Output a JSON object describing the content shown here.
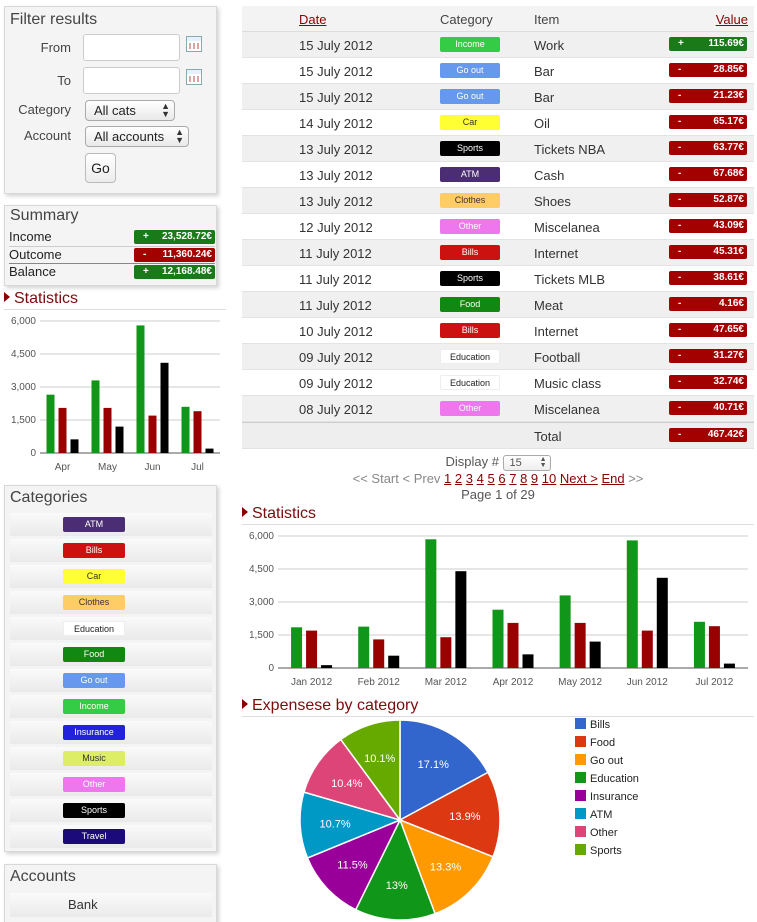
{
  "filter": {
    "title": "Filter results",
    "from_label": "From",
    "to_label": "To",
    "from_value": "",
    "to_value": "",
    "category_label": "Category",
    "category_value": "All cats",
    "account_label": "Account",
    "account_value": "All accounts",
    "go_label": "Go"
  },
  "summary": {
    "title": "Summary",
    "rows": [
      {
        "label": "Income",
        "sign": "+",
        "amount": "23,528.72€",
        "color": "#1a7a1a"
      },
      {
        "label": "Outcome",
        "sign": "-",
        "amount": "11,360.24€",
        "color": "#a30000"
      },
      {
        "label": "Balance",
        "sign": "+",
        "amount": "12,168.48€",
        "color": "#1a7a1a"
      }
    ]
  },
  "stats_left_title": "Statistics",
  "categories": {
    "title": "Categories",
    "items": [
      {
        "label": "ATM",
        "bg": "#4b2d73",
        "fg": "#ffffff"
      },
      {
        "label": "Bills",
        "bg": "#cc1111",
        "fg": "#ffffff"
      },
      {
        "label": "Car",
        "bg": "#ffff33",
        "fg": "#333333"
      },
      {
        "label": "Clothes",
        "bg": "#ffcc66",
        "fg": "#333333"
      },
      {
        "label": "Education",
        "bg": "#ffffff",
        "fg": "#222222"
      },
      {
        "label": "Food",
        "bg": "#118811",
        "fg": "#ffffff"
      },
      {
        "label": "Go out",
        "bg": "#6699ee",
        "fg": "#ffffff"
      },
      {
        "label": "Income",
        "bg": "#33cc44",
        "fg": "#ffffff"
      },
      {
        "label": "Insurance",
        "bg": "#2222dd",
        "fg": "#ffffff"
      },
      {
        "label": "Music",
        "bg": "#ddee66",
        "fg": "#333333"
      },
      {
        "label": "Other",
        "bg": "#ee77ee",
        "fg": "#ffffff"
      },
      {
        "label": "Sports",
        "bg": "#000000",
        "fg": "#ffffff"
      },
      {
        "label": "Travel",
        "bg": "#1a0a7a",
        "fg": "#ffffff"
      }
    ]
  },
  "accounts": {
    "title": "Accounts",
    "items": [
      "Bank"
    ]
  },
  "table": {
    "headers": {
      "date": "Date",
      "category": "Category",
      "item": "Item",
      "value": "Value"
    },
    "rows": [
      {
        "date": "15 July 2012",
        "category": "Income",
        "item": "Work",
        "sign": "+",
        "value": "115.69€"
      },
      {
        "date": "15 July 2012",
        "category": "Go out",
        "item": "Bar",
        "sign": "-",
        "value": "28.85€"
      },
      {
        "date": "15 July 2012",
        "category": "Go out",
        "item": "Bar",
        "sign": "-",
        "value": "21.23€"
      },
      {
        "date": "14 July 2012",
        "category": "Car",
        "item": "Oil",
        "sign": "-",
        "value": "65.17€"
      },
      {
        "date": "13 July 2012",
        "category": "Sports",
        "item": "Tickets NBA",
        "sign": "-",
        "value": "63.77€"
      },
      {
        "date": "13 July 2012",
        "category": "ATM",
        "item": "Cash",
        "sign": "-",
        "value": "67.68€"
      },
      {
        "date": "13 July 2012",
        "category": "Clothes",
        "item": "Shoes",
        "sign": "-",
        "value": "52.87€"
      },
      {
        "date": "12 July 2012",
        "category": "Other",
        "item": "Miscelanea",
        "sign": "-",
        "value": "43.09€"
      },
      {
        "date": "11 July 2012",
        "category": "Bills",
        "item": "Internet",
        "sign": "-",
        "value": "45.31€"
      },
      {
        "date": "11 July 2012",
        "category": "Sports",
        "item": "Tickets MLB",
        "sign": "-",
        "value": "38.61€"
      },
      {
        "date": "11 July 2012",
        "category": "Food",
        "item": "Meat",
        "sign": "-",
        "value": "4.16€"
      },
      {
        "date": "10 July 2012",
        "category": "Bills",
        "item": "Internet",
        "sign": "-",
        "value": "47.65€"
      },
      {
        "date": "09 July 2012",
        "category": "Education",
        "item": "Football",
        "sign": "-",
        "value": "31.27€"
      },
      {
        "date": "09 July 2012",
        "category": "Education",
        "item": "Music class",
        "sign": "-",
        "value": "32.74€"
      },
      {
        "date": "08 July 2012",
        "category": "Other",
        "item": "Miscelanea",
        "sign": "-",
        "value": "40.71€"
      }
    ],
    "total_label": "Total",
    "total_sign": "-",
    "total_value": "467.42€"
  },
  "pager": {
    "display_label": "Display #",
    "display_value": "15",
    "start": "<< Start",
    "prev": "< Prev",
    "pages": [
      "1",
      "2",
      "3",
      "4",
      "5",
      "6",
      "7",
      "8",
      "9",
      "10"
    ],
    "next": "Next >",
    "end": "End",
    "end_suffix": ">>",
    "page_info": "Page 1 of 29"
  },
  "stats_main_title": "Statistics",
  "pie_title": "Expensese by category",
  "chart_data": [
    {
      "type": "bar",
      "categories": [
        "Apr",
        "May",
        "Jun",
        "Jul"
      ],
      "ylim": [
        0,
        6000
      ],
      "yticks": [
        "0",
        "1,500",
        "3,000",
        "4,500",
        "6,000"
      ],
      "series": [
        {
          "color": "#109618",
          "values": [
            2650,
            3300,
            5800,
            2100
          ]
        },
        {
          "color": "#990000",
          "values": [
            2050,
            2050,
            1700,
            1900
          ]
        },
        {
          "color": "#000000",
          "values": [
            620,
            1200,
            4100,
            200
          ]
        }
      ]
    },
    {
      "type": "bar",
      "categories": [
        "Jan 2012",
        "Feb 2012",
        "Mar 2012",
        "Apr 2012",
        "May 2012",
        "Jun 2012",
        "Jul 2012"
      ],
      "ylim": [
        0,
        6000
      ],
      "yticks": [
        "0",
        "1,500",
        "3,000",
        "4,500",
        "6,000"
      ],
      "series": [
        {
          "color": "#109618",
          "values": [
            1850,
            1880,
            5850,
            2650,
            3300,
            5800,
            2100
          ]
        },
        {
          "color": "#990000",
          "values": [
            1700,
            1300,
            1400,
            2050,
            2050,
            1700,
            1900
          ]
        },
        {
          "color": "#000000",
          "values": [
            130,
            560,
            4400,
            620,
            1200,
            4100,
            200
          ]
        }
      ]
    },
    {
      "type": "pie",
      "slices": [
        {
          "name": "Bills",
          "value": 17.1,
          "label": "17.1%",
          "color": "#3366cc"
        },
        {
          "name": "Food",
          "value": 13.9,
          "label": "13.9%",
          "color": "#dc3912"
        },
        {
          "name": "Go out",
          "value": 13.3,
          "label": "13.3%",
          "color": "#ff9900"
        },
        {
          "name": "Education",
          "value": 13,
          "label": "13%",
          "color": "#109618"
        },
        {
          "name": "Insurance",
          "value": 11.5,
          "label": "11.5%",
          "color": "#990099"
        },
        {
          "name": "ATM",
          "value": 10.7,
          "label": "10.7%",
          "color": "#0099c6"
        },
        {
          "name": "Other",
          "value": 10.4,
          "label": "10.4%",
          "color": "#dd4477"
        },
        {
          "name": "Sports",
          "value": 10.1,
          "label": "10.1%",
          "color": "#66aa00"
        }
      ],
      "legend": "right"
    }
  ]
}
